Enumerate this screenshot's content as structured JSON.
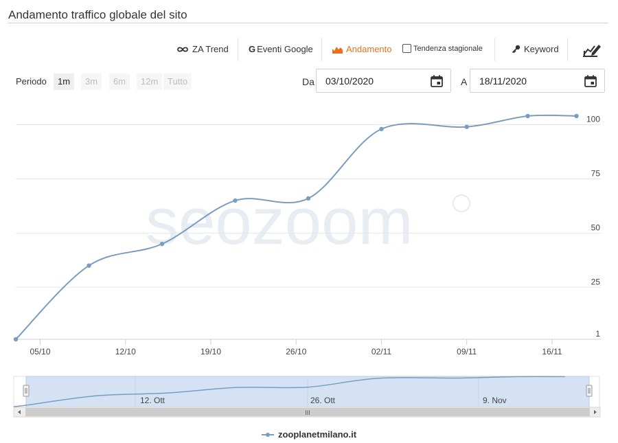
{
  "page_title": "Andamento traffico globale del sito",
  "toolbar": {
    "za_trend": "ZA Trend",
    "eventi_google": "Eventi Google",
    "andamento": "Andamento",
    "tendenza": "Tendenza stagionale",
    "keyword": "Keyword"
  },
  "period": {
    "label": "Periodo",
    "options": [
      "1m",
      "3m",
      "6m",
      "12m",
      "Tutto"
    ],
    "selected": "1m"
  },
  "dates": {
    "from_label": "Da",
    "from_value": "03/10/2020",
    "to_label": "A",
    "to_value": "18/11/2020"
  },
  "watermark": "seozoom",
  "colors": {
    "series": "#7a9cbf",
    "active": "#e8701e",
    "navigator_fill": "#d4e2f4"
  },
  "chart_data": {
    "type": "line",
    "title": "",
    "xlabel": "",
    "ylabel": "",
    "x_axis": "date",
    "x_range": [
      "2020-10-03",
      "2020-11-20"
    ],
    "x_ticks": [
      "05/10",
      "12/10",
      "19/10",
      "26/10",
      "02/11",
      "09/11",
      "16/11"
    ],
    "y_ticks": [
      1,
      25,
      50,
      75,
      100
    ],
    "ylim": [
      1,
      110
    ],
    "y_axis_side": "right",
    "grid": true,
    "series": [
      {
        "name": "zooplanetmilano.it",
        "points": [
          {
            "x": "2020-10-03",
            "y": 1
          },
          {
            "x": "2020-10-09",
            "y": 35
          },
          {
            "x": "2020-10-15",
            "y": 45
          },
          {
            "x": "2020-10-21",
            "y": 65
          },
          {
            "x": "2020-10-27",
            "y": 66
          },
          {
            "x": "2020-11-02",
            "y": 98
          },
          {
            "x": "2020-11-09",
            "y": 99
          },
          {
            "x": "2020-11-14",
            "y": 104
          },
          {
            "x": "2020-11-18",
            "y": 104
          }
        ]
      }
    ],
    "navigator": {
      "labels": [
        "12. Ott",
        "26. Ott",
        "9. Nov"
      ],
      "scroll_grip": "III"
    },
    "legend_position": "bottom-center"
  }
}
